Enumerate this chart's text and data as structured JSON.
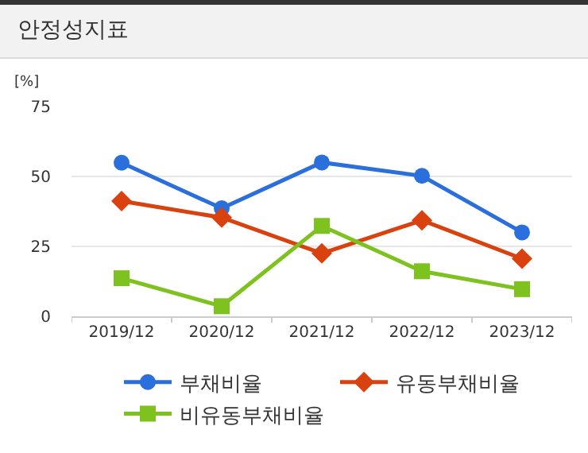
{
  "chart_data": {
    "type": "line",
    "title": "안정성지표",
    "ylabel": "[%]",
    "categories": [
      "2019/12",
      "2020/12",
      "2021/12",
      "2022/12",
      "2023/12"
    ],
    "series": [
      {
        "name": "부채비율",
        "color": "#2a6fdb",
        "marker": "circle",
        "values": [
          54.9,
          38.6,
          55,
          50.2,
          30
        ]
      },
      {
        "name": "유동부채비율",
        "color": "#d9410f",
        "marker": "diamond",
        "values": [
          41.2,
          35.3,
          22.5,
          34.3,
          20.6
        ]
      },
      {
        "name": "비유동부채비율",
        "color": "#7dc21e",
        "marker": "square",
        "values": [
          13.6,
          3.6,
          32.3,
          16.1,
          9.7
        ]
      }
    ],
    "ylim": [
      0,
      75
    ],
    "yticks": [
      0,
      25,
      50,
      75
    ],
    "grid": "y",
    "legend": "bottom"
  }
}
